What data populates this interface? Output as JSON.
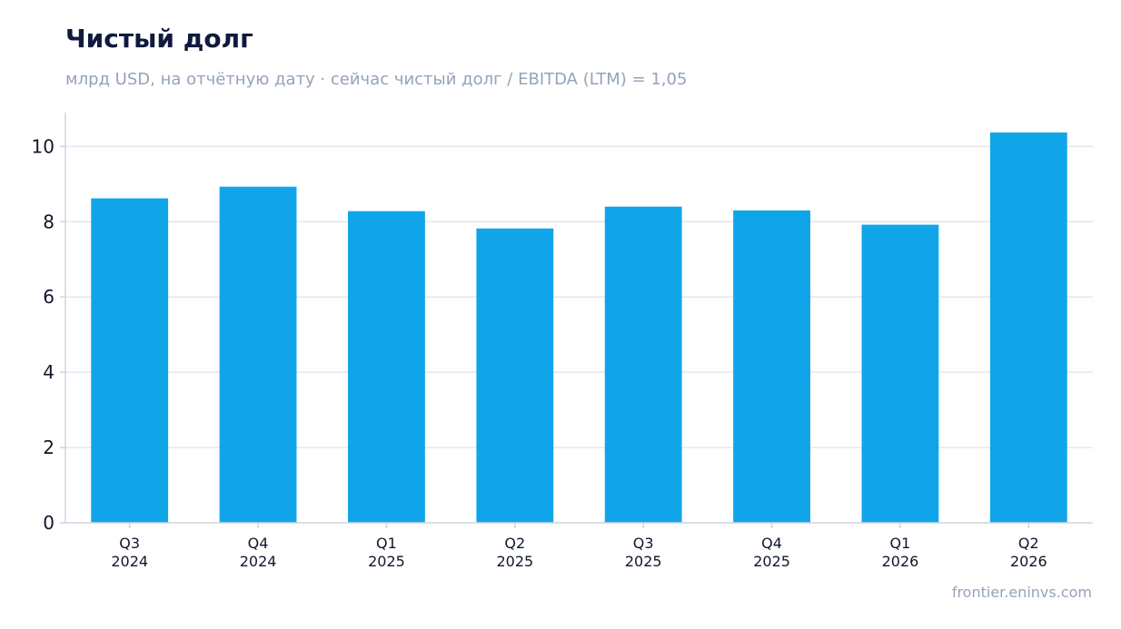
{
  "header": {
    "title": "Чистый долг",
    "subtitle": "млрд USD, на отчётную дату · сейчас чистый долг / EBITDA (LTM) = 1,05"
  },
  "footer": {
    "source": "frontier.eninvs.com"
  },
  "colors": {
    "bar": "#10a5e8",
    "grid": "#e2e8f0",
    "axis": "#cbd5e1",
    "title": "#0f1a3d",
    "muted": "#94a3b8"
  },
  "chart_data": {
    "type": "bar",
    "categories": [
      [
        "Q3",
        "2024"
      ],
      [
        "Q4",
        "2024"
      ],
      [
        "Q1",
        "2025"
      ],
      [
        "Q2",
        "2025"
      ],
      [
        "Q3",
        "2025"
      ],
      [
        "Q4",
        "2025"
      ],
      [
        "Q1",
        "2026"
      ],
      [
        "Q2",
        "2026"
      ]
    ],
    "values": [
      8.62,
      8.93,
      8.28,
      7.82,
      8.4,
      8.3,
      7.92,
      10.37
    ],
    "yticks": [
      0,
      2,
      4,
      6,
      8,
      10
    ],
    "ylim": [
      0,
      10.9
    ],
    "grid": true,
    "legend": "none"
  }
}
